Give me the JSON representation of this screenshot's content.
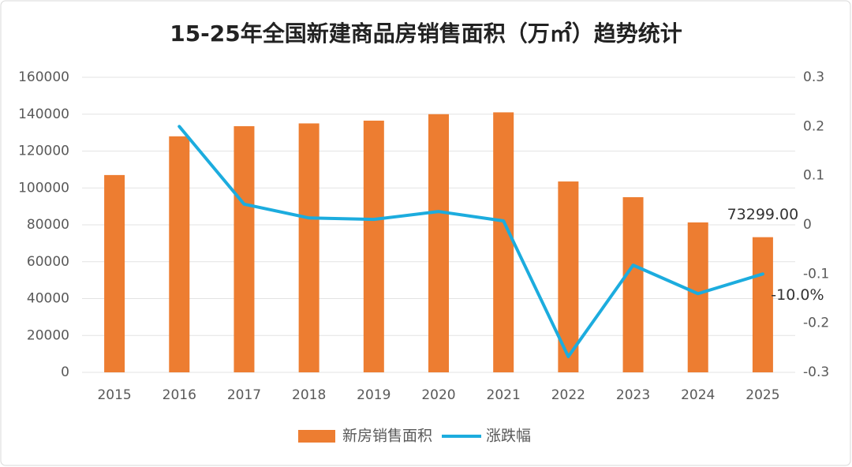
{
  "chart_data": {
    "type": "bar_line",
    "title": "15-25年全国新建商品房销售面积（万㎡）趋势统计",
    "categories": [
      "2015",
      "2016",
      "2017",
      "2018",
      "2019",
      "2020",
      "2021",
      "2022",
      "2023",
      "2024",
      "2025"
    ],
    "series": [
      {
        "name": "新房销售面积",
        "type": "bar",
        "color": "#ed7d31",
        "values": [
          107000,
          128000,
          133500,
          135000,
          136500,
          140000,
          141000,
          103500,
          95000,
          81300,
          73299
        ],
        "value_labels": [
          null,
          null,
          null,
          null,
          null,
          null,
          null,
          null,
          null,
          null,
          "73299.00"
        ]
      },
      {
        "name": "涨跌幅",
        "type": "line",
        "axis": "y2",
        "color": "#1cacde",
        "values": [
          null,
          0.2,
          0.042,
          0.014,
          0.011,
          0.027,
          0.008,
          -0.268,
          -0.082,
          -0.14,
          -0.1
        ],
        "value_labels": [
          null,
          null,
          null,
          null,
          null,
          null,
          null,
          null,
          null,
          null,
          "-10.0%"
        ]
      }
    ],
    "ylim": [
      0,
      160000
    ],
    "yticks": [
      0,
      20000,
      40000,
      60000,
      80000,
      100000,
      120000,
      140000,
      160000
    ],
    "y2lim": [
      -0.3,
      0.3
    ],
    "y2ticks": [
      -0.3,
      -0.2,
      -0.1,
      0,
      0.1,
      0.2,
      0.3
    ],
    "grid": true,
    "legend": "bottom"
  }
}
